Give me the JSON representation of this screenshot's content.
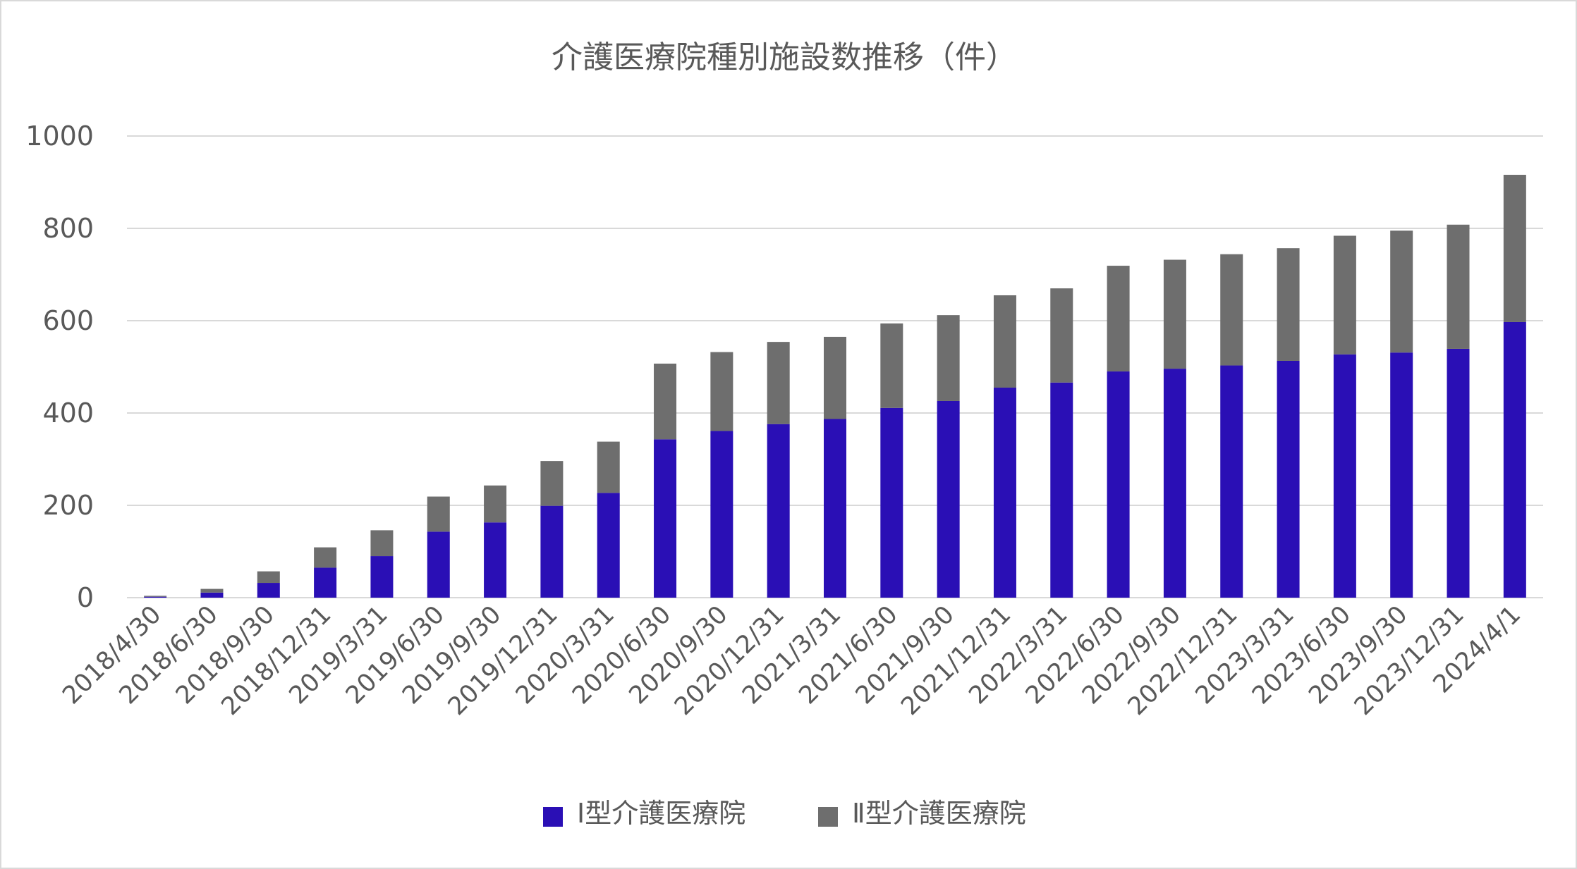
{
  "chart_data": {
    "type": "bar",
    "stacked": true,
    "title": "介護医療院種別施設数推移（件）",
    "xlabel": "",
    "ylabel": "",
    "ylim": [
      0,
      1000
    ],
    "yticks": [
      "0",
      "200",
      "400",
      "600",
      "800",
      "1000"
    ],
    "grid": true,
    "legend_position": "bottom",
    "categories": [
      "2018/4/30",
      "2018/6/30",
      "2018/9/30",
      "2018/12/31",
      "2019/3/31",
      "2019/6/30",
      "2019/9/30",
      "2019/12/31",
      "2020/3/31",
      "2020/6/30",
      "2020/9/30",
      "2020/12/31",
      "2021/3/31",
      "2021/6/30",
      "2021/9/30",
      "2021/12/31",
      "2022/3/31",
      "2022/6/30",
      "2022/9/30",
      "2022/12/31",
      "2023/3/31",
      "2023/6/30",
      "2023/9/30",
      "2023/12/31",
      "2024/4/1"
    ],
    "series": [
      {
        "name": "Ⅰ型介護医療院",
        "color": "#2a0fb5",
        "values": [
          2,
          11,
          32,
          65,
          90,
          143,
          163,
          199,
          227,
          343,
          361,
          376,
          387,
          411,
          426,
          455,
          466,
          490,
          496,
          503,
          513,
          527,
          531,
          539,
          597
        ]
      },
      {
        "name": "Ⅱ型介護医療院",
        "color": "#6e6e6e",
        "values": [
          2,
          8,
          25,
          44,
          56,
          76,
          80,
          97,
          111,
          164,
          171,
          178,
          178,
          183,
          186,
          200,
          204,
          229,
          236,
          241,
          244,
          257,
          264,
          269,
          319
        ]
      }
    ]
  }
}
